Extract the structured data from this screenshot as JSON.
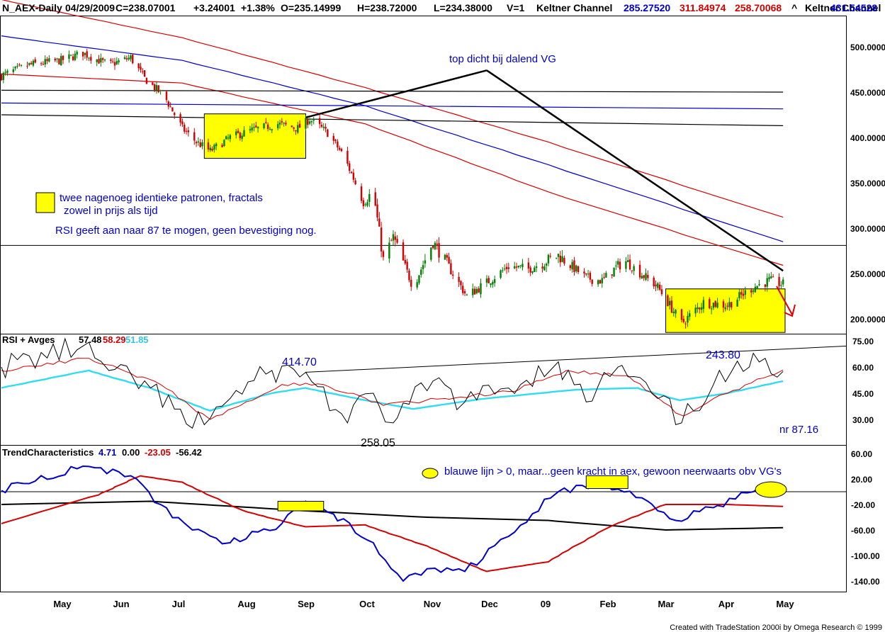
{
  "header": {
    "symbol": "N_AEX-Daily",
    "date": "04/29/2009",
    "close": "C=238.07001",
    "change": "+3.24001",
    "pct": "+1.38%",
    "open": "O=235.14999",
    "high": "H=238.72000",
    "low": "L=234.38000",
    "volume": "V=1",
    "kc1_label": "Keltner Channel",
    "kc1_v1": "285.27520",
    "kc1_v2": "311.84974",
    "kc1_v3": "258.70068",
    "caret": "^",
    "kc2_label": "Keltner Channel",
    "kc2_v1": "431.54528"
  },
  "rsi_header": {
    "label": "RSI + Avges",
    "v1": "57.48",
    "v2": "58.29",
    "v3": "51.85"
  },
  "tc_header": {
    "label": "TrendCharacteristics",
    "v1": "4.71",
    "v2": "0.00",
    "v3": "-23.05",
    "v4": "-56.42"
  },
  "annotations": {
    "top": "top dicht bij dalend VG",
    "legend1": "twee nagenoeg identieke patronen, fractals",
    "legend2": "zowel in prijs als tijd",
    "rsi_note": "RSI geeft aan naar 87 te mogen, geen bevestiging nog.",
    "rsi_high": "414.70",
    "rsi_low": "258.05",
    "rsi_high2": "243.80",
    "rsi_target": "nr 87.16",
    "tc_note": "blauwe lijn > 0, maar...geen kracht in aex, gewoon neerwaarts obv VG's"
  },
  "footer": "Created with TradeStation 2000i by Omega Research © 1999",
  "colors": {
    "black": "#000000",
    "blue": "#0000c8",
    "red": "#d40000",
    "cyan": "#30dcf0",
    "highlight": "#ffff00",
    "grid": "#808080",
    "arrow": "#e00000"
  },
  "chart_data": [
    {
      "type": "candlestick",
      "panel": "price",
      "y_ticks": [
        "500.0000",
        "450.0000",
        "400.0000",
        "350.0000",
        "300.0000",
        "250.0000",
        "200.0000"
      ],
      "y_values": [
        500,
        450,
        400,
        350,
        300,
        250,
        200
      ],
      "x_ticks": [
        "May",
        "Jun",
        "Jul",
        "Aug",
        "Sep",
        "Oct",
        "Nov",
        "Dec",
        "09",
        "Feb",
        "Mar",
        "Apr",
        "May"
      ],
      "x_range": [
        "2008-04-01",
        "2009-05-31"
      ],
      "price_path": [
        [
          "2008-04-01",
          468
        ],
        [
          "2008-04-15",
          480
        ],
        [
          "2008-05-01",
          485
        ],
        [
          "2008-05-12",
          493
        ],
        [
          "2008-05-25",
          480
        ],
        [
          "2008-06-05",
          488
        ],
        [
          "2008-06-12",
          465
        ],
        [
          "2008-06-22",
          445
        ],
        [
          "2008-07-01",
          410
        ],
        [
          "2008-07-08",
          395
        ],
        [
          "2008-07-15",
          385
        ],
        [
          "2008-07-25",
          400
        ],
        [
          "2008-08-05",
          408
        ],
        [
          "2008-08-18",
          415
        ],
        [
          "2008-08-28",
          410
        ],
        [
          "2008-09-03",
          420
        ],
        [
          "2008-09-12",
          405
        ],
        [
          "2008-09-20",
          380
        ],
        [
          "2008-09-30",
          330
        ],
        [
          "2008-10-05",
          340
        ],
        [
          "2008-10-10",
          265
        ],
        [
          "2008-10-15",
          290
        ],
        [
          "2008-10-25",
          235
        ],
        [
          "2008-11-04",
          285
        ],
        [
          "2008-11-14",
          250
        ],
        [
          "2008-11-21",
          225
        ],
        [
          "2008-12-01",
          240
        ],
        [
          "2008-12-12",
          258
        ],
        [
          "2008-12-22",
          255
        ],
        [
          "2009-01-06",
          270
        ],
        [
          "2009-01-20",
          245
        ],
        [
          "2009-01-28",
          242
        ],
        [
          "2009-02-08",
          265
        ],
        [
          "2009-02-25",
          235
        ],
        [
          "2009-03-09",
          195
        ],
        [
          "2009-03-20",
          218
        ],
        [
          "2009-04-01",
          215
        ],
        [
          "2009-04-14",
          235
        ],
        [
          "2009-04-22",
          242
        ],
        [
          "2009-04-29",
          238
        ]
      ],
      "keltner_channel_1": {
        "label": "Keltner Channel",
        "values_last": [
          285.2752,
          311.84974,
          258.70068
        ],
        "upper": [
          [
            "2008-04-01",
            552
          ],
          [
            "2008-07-01",
            510
          ],
          [
            "2008-10-01",
            455
          ],
          [
            "2009-01-01",
            395
          ],
          [
            "2009-04-29",
            312
          ]
        ],
        "mid": [
          [
            "2008-04-01",
            512
          ],
          [
            "2008-07-01",
            485
          ],
          [
            "2008-10-01",
            435
          ],
          [
            "2009-01-01",
            370
          ],
          [
            "2009-04-29",
            285
          ]
        ],
        "lower": [
          [
            "2008-04-01",
            470
          ],
          [
            "2008-07-01",
            460
          ],
          [
            "2008-10-01",
            415
          ],
          [
            "2009-01-01",
            340
          ],
          [
            "2009-04-29",
            259
          ]
        ]
      },
      "keltner_channel_2": {
        "label": "Keltner Channel",
        "values_last": [
          431.54528
        ],
        "upper": [
          [
            "2008-04-01",
            452
          ],
          [
            "2009-04-29",
            450
          ]
        ],
        "mid": [
          [
            "2008-04-01",
            438
          ],
          [
            "2009-04-29",
            431.5
          ]
        ],
        "lower": [
          [
            "2008-04-01",
            425
          ],
          [
            "2009-04-29",
            413
          ]
        ]
      },
      "horizontal_line": 281,
      "trend_line_up": [
        [
          "2008-09-01",
          422
        ],
        [
          "2008-12-01",
          474
        ]
      ],
      "trend_line_down": [
        [
          "2008-12-01",
          474
        ],
        [
          "2009-04-29",
          253
        ]
      ],
      "highlight_boxes": [
        {
          "x": [
            "2008-07-12",
            "2008-09-01"
          ],
          "y": [
            377,
            426
          ]
        },
        {
          "x": [
            "2009-03-01",
            "2009-04-30"
          ],
          "y": [
            185,
            233
          ]
        }
      ]
    },
    {
      "type": "line",
      "panel": "rsi",
      "title": "RSI + Avges",
      "y_ticks": [
        "75.00",
        "60.00",
        "45.00",
        "30.00"
      ],
      "y_values": [
        75,
        60,
        45,
        30
      ],
      "series": [
        {
          "name": "RSI",
          "color": "black",
          "values": [
            [
              "2008-04-01",
              60
            ],
            [
              "2008-05-12",
              72
            ],
            [
              "2008-05-25",
              58
            ],
            [
              "2008-06-15",
              48
            ],
            [
              "2008-07-06",
              25
            ],
            [
              "2008-07-25",
              42
            ],
            [
              "2008-08-15",
              58
            ],
            [
              "2008-09-01",
              57
            ],
            [
              "2008-09-22",
              28
            ],
            [
              "2008-10-05",
              45
            ],
            [
              "2008-10-15",
              28
            ],
            [
              "2008-11-04",
              52
            ],
            [
              "2008-11-20",
              40
            ],
            [
              "2008-12-12",
              48
            ],
            [
              "2009-01-06",
              63
            ],
            [
              "2009-01-20",
              40
            ],
            [
              "2009-02-05",
              60
            ],
            [
              "2009-02-25",
              42
            ],
            [
              "2009-03-09",
              28
            ],
            [
              "2009-03-25",
              50
            ],
            [
              "2009-04-12",
              60
            ],
            [
              "2009-04-20",
              65
            ],
            [
              "2009-04-29",
              57.48
            ]
          ]
        },
        {
          "name": "Avg 1",
          "color": "red",
          "values": [
            [
              "2008-04-01",
              58
            ],
            [
              "2008-05-15",
              65
            ],
            [
              "2008-06-20",
              50
            ],
            [
              "2008-07-15",
              30
            ],
            [
              "2008-08-20",
              50
            ],
            [
              "2008-09-10",
              50
            ],
            [
              "2008-10-10",
              38
            ],
            [
              "2008-11-10",
              42
            ],
            [
              "2008-12-15",
              46
            ],
            [
              "2009-01-10",
              58
            ],
            [
              "2009-02-10",
              55
            ],
            [
              "2009-03-10",
              32
            ],
            [
              "2009-04-01",
              45
            ],
            [
              "2009-04-29",
              58.29
            ]
          ]
        },
        {
          "name": "Avg 2",
          "color": "cyan",
          "values": [
            [
              "2008-04-01",
              48
            ],
            [
              "2008-05-15",
              58
            ],
            [
              "2008-06-15",
              48
            ],
            [
              "2008-07-15",
              35
            ],
            [
              "2008-08-15",
              45
            ],
            [
              "2008-09-01",
              48
            ],
            [
              "2008-10-01",
              41
            ],
            [
              "2008-10-25",
              36
            ],
            [
              "2008-12-01",
              42
            ],
            [
              "2009-01-15",
              47
            ],
            [
              "2009-02-15",
              48
            ],
            [
              "2009-03-08",
              41
            ],
            [
              "2009-04-01",
              45
            ],
            [
              "2009-04-29",
              51.85
            ]
          ]
        }
      ],
      "trend_line": [
        [
          "2008-09-01",
          57
        ],
        [
          "2009-05-31",
          72
        ]
      ]
    },
    {
      "type": "line",
      "panel": "trend_characteristics",
      "title": "TrendCharacteristics",
      "y_ticks": [
        "60.00",
        "20.00",
        "-20.00",
        "-60.00",
        "-100.00",
        "-140.00"
      ],
      "y_values": [
        60,
        20,
        -20,
        -60,
        -100,
        -140
      ],
      "series": [
        {
          "name": "blue",
          "color": "blue",
          "values": [
            [
              "2008-04-01",
              2
            ],
            [
              "2008-05-12",
              40
            ],
            [
              "2008-06-05",
              25
            ],
            [
              "2008-06-20",
              -20
            ],
            [
              "2008-07-06",
              -60
            ],
            [
              "2008-07-25",
              -80
            ],
            [
              "2008-08-20",
              -50
            ],
            [
              "2008-09-01",
              -15
            ],
            [
              "2008-09-15",
              -35
            ],
            [
              "2008-10-05",
              -80
            ],
            [
              "2008-10-20",
              -140
            ],
            [
              "2008-11-05",
              -120
            ],
            [
              "2008-11-20",
              -125
            ],
            [
              "2008-12-12",
              -70
            ],
            [
              "2009-01-06",
              0
            ],
            [
              "2009-01-28",
              15
            ],
            [
              "2009-02-20",
              -15
            ],
            [
              "2009-03-06",
              -45
            ],
            [
              "2009-03-25",
              -25
            ],
            [
              "2009-04-14",
              0
            ],
            [
              "2009-04-29",
              4.71
            ]
          ]
        },
        {
          "name": "red",
          "color": "red",
          "values": [
            [
              "2008-04-01",
              -50
            ],
            [
              "2008-05-20",
              -5
            ],
            [
              "2008-06-10",
              25
            ],
            [
              "2008-07-01",
              15
            ],
            [
              "2008-08-01",
              -30
            ],
            [
              "2008-09-01",
              -55
            ],
            [
              "2008-10-01",
              -52
            ],
            [
              "2008-11-01",
              -85
            ],
            [
              "2008-12-01",
              -125
            ],
            [
              "2009-01-01",
              -110
            ],
            [
              "2009-02-01",
              -55
            ],
            [
              "2009-03-01",
              -20
            ],
            [
              "2009-04-01",
              -20
            ],
            [
              "2009-04-29",
              -23.05
            ]
          ]
        },
        {
          "name": "black",
          "color": "black",
          "values": [
            [
              "2008-04-01",
              -20
            ],
            [
              "2008-06-15",
              -15
            ],
            [
              "2008-09-01",
              -30
            ],
            [
              "2008-11-01",
              -40
            ],
            [
              "2009-01-01",
              -45
            ],
            [
              "2009-03-01",
              -60
            ],
            [
              "2009-04-29",
              -56.42
            ]
          ]
        }
      ],
      "zero_line": 0,
      "highlight_boxes": [
        {
          "x": [
            "2008-08-18",
            "2008-09-10"
          ],
          "y": [
            -30,
            -15
          ]
        },
        {
          "x": [
            "2009-01-20",
            "2009-02-10"
          ],
          "y": [
            5,
            25
          ]
        }
      ]
    }
  ]
}
